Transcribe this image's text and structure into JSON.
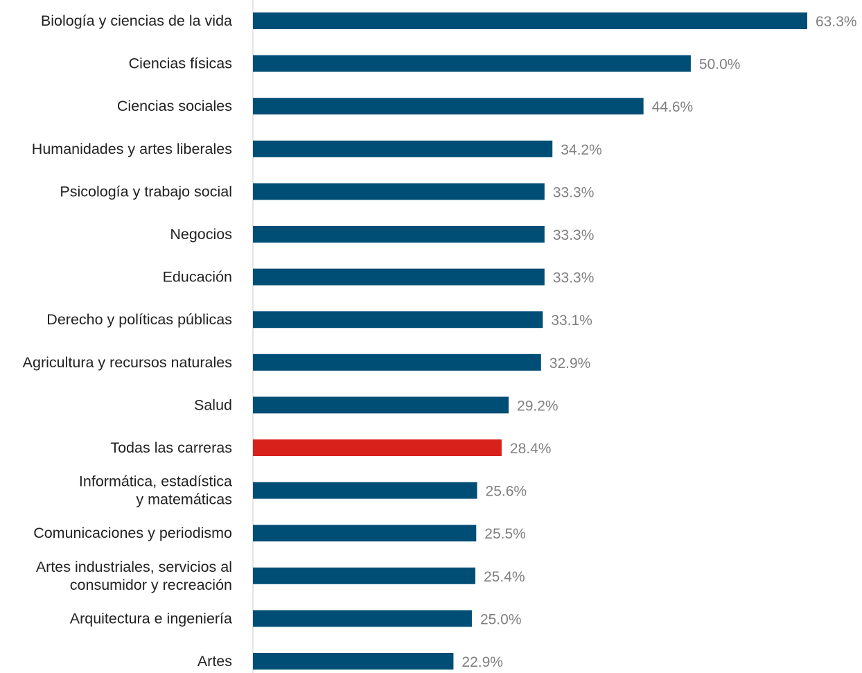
{
  "chart_data": {
    "type": "bar",
    "orientation": "horizontal",
    "title": "",
    "xlabel": "",
    "ylabel": "",
    "grid": false,
    "xlim": [
      0,
      70
    ],
    "value_suffix": "%",
    "categories": [
      [
        "Biología y ciencias de la vida"
      ],
      [
        "Ciencias físicas"
      ],
      [
        "Ciencias sociales"
      ],
      [
        "Humanidades y artes liberales"
      ],
      [
        "Psicología y trabajo social"
      ],
      [
        "Negocios"
      ],
      [
        "Educación"
      ],
      [
        "Derecho y políticas públicas"
      ],
      [
        "Agricultura y recursos naturales"
      ],
      [
        "Salud"
      ],
      [
        "Todas las carreras"
      ],
      [
        "Informática, estadística",
        "y matemáticas"
      ],
      [
        "Comunicaciones y periodismo"
      ],
      [
        "Artes industriales, servicios al",
        "consumidor y recreación"
      ],
      [
        "Arquitectura e ingeniería"
      ],
      [
        "Artes"
      ]
    ],
    "values": [
      63.3,
      50.0,
      44.6,
      34.2,
      33.3,
      33.3,
      33.3,
      33.1,
      32.9,
      29.2,
      28.4,
      25.6,
      25.5,
      25.4,
      25.0,
      22.9
    ],
    "value_labels": [
      "63.3%",
      "50.0%",
      "44.6%",
      "34.2%",
      "33.3%",
      "33.3%",
      "33.3%",
      "33.1%",
      "32.9%",
      "29.2%",
      "28.4%",
      "25.6%",
      "25.5%",
      "25.4%",
      "25.0%",
      "22.9%"
    ],
    "highlight_category": "Todas las carreras",
    "colors": {
      "bar": "#004e76",
      "highlight": "#d9211c",
      "axis": "#c8c8c8",
      "label": "#222222",
      "value_label": "#808080"
    }
  }
}
